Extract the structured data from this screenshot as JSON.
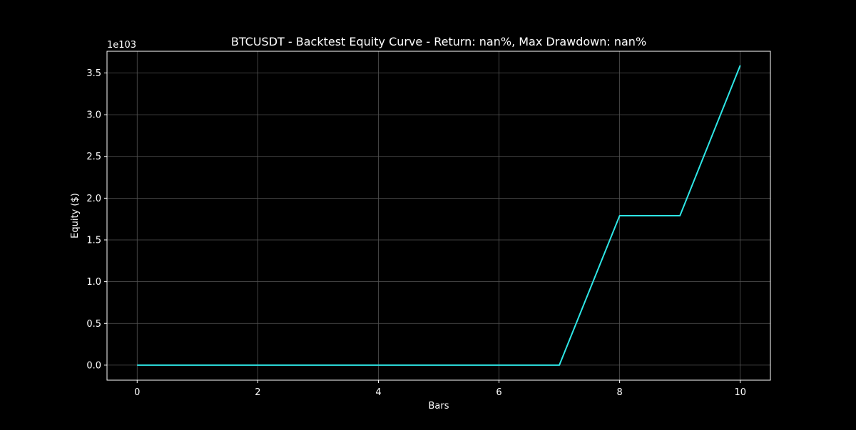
{
  "chart_data": {
    "type": "line",
    "title": "BTCUSDT - Backtest Equity Curve - Return: nan%, Max Drawdown: nan%",
    "xlabel": "Bars",
    "ylabel": "Equity ($)",
    "y_offset_label": "1e103",
    "x_ticks": [
      0,
      2,
      4,
      6,
      8,
      10
    ],
    "y_ticks": [
      0.0,
      0.5,
      1.0,
      1.5,
      2.0,
      2.5,
      3.0,
      3.5
    ],
    "y_tick_labels": [
      "0.0",
      "0.5",
      "1.0",
      "1.5",
      "2.0",
      "2.5",
      "3.0",
      "3.5"
    ],
    "xlim": [
      -0.5,
      10.5
    ],
    "ylim": [
      -0.18,
      3.76
    ],
    "grid": true,
    "series": [
      {
        "x": [
          0,
          1,
          2,
          3,
          4,
          5,
          6,
          7,
          8,
          9,
          10
        ],
        "y": [
          0,
          0,
          0,
          0,
          0,
          0,
          0,
          0,
          1.79,
          1.79,
          3.59
        ],
        "color": "#2ee6e6"
      }
    ],
    "background": "#000000",
    "axes_color": "#ffffff",
    "grid_color": "#555555"
  }
}
